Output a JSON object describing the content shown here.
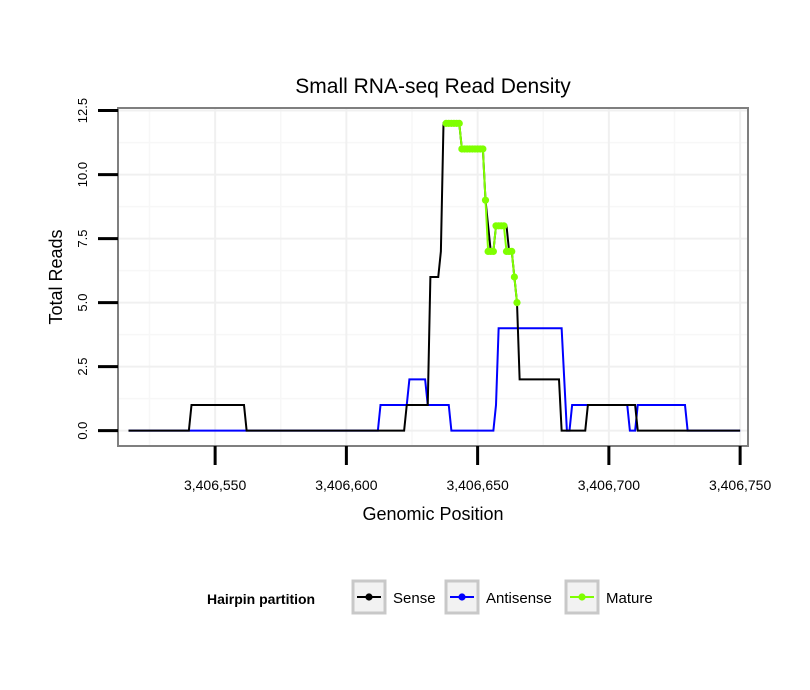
{
  "chart_data": {
    "type": "line",
    "title": "Small RNA-seq Read Density",
    "xlabel": "Genomic Position",
    "ylabel": "Total Reads",
    "xlim": [
      3406513,
      3406753
    ],
    "ylim": [
      -0.6,
      12.6
    ],
    "x_ticks": [
      3406550,
      3406600,
      3406650,
      3406700,
      3406750
    ],
    "x_tick_labels": [
      "3,406,550",
      "3,406,600",
      "3,406,650",
      "3,406,700",
      "3,406,750"
    ],
    "y_ticks": [
      0,
      2.5,
      5,
      7.5,
      10,
      12.5
    ],
    "y_tick_labels": [
      "0.0",
      "2.5",
      "5.0",
      "7.5",
      "10.0",
      "12.5"
    ],
    "grid": true,
    "legend": {
      "title": "Hairpin partition",
      "position": "bottom",
      "entries": [
        "Sense",
        "Antisense",
        "Mature"
      ]
    },
    "series": [
      {
        "name": "Sense",
        "color": "#000000",
        "x": [
          3406517,
          3406540,
          3406541,
          3406561,
          3406562,
          3406622,
          3406623,
          3406631,
          3406632,
          3406635,
          3406636,
          3406637,
          3406638,
          3406643,
          3406644,
          3406652,
          3406653,
          3406655,
          3406656,
          3406657,
          3406658,
          3406661,
          3406662,
          3406663,
          3406664,
          3406665,
          3406666,
          3406681,
          3406682,
          3406686,
          3406687,
          3406691,
          3406692,
          3406710,
          3406711,
          3406750
        ],
        "y": [
          0,
          0,
          1,
          1,
          0,
          0,
          1,
          1,
          6,
          6,
          7,
          12,
          12,
          12,
          11,
          11,
          9,
          7,
          7,
          8,
          8,
          8,
          7,
          7,
          6,
          5,
          2,
          2,
          0,
          0,
          0,
          0,
          1,
          1,
          0,
          0
        ]
      },
      {
        "name": "Antisense",
        "color": "#0000ff",
        "x": [
          3406517,
          3406612,
          3406613,
          3406623,
          3406624,
          3406630,
          3406631,
          3406639,
          3406640,
          3406655,
          3406656,
          3406657,
          3406658,
          3406682,
          3406683,
          3406684,
          3406685,
          3406686,
          3406687,
          3406707,
          3406708,
          3406710,
          3406711,
          3406729,
          3406730,
          3406750
        ],
        "y": [
          0,
          0,
          1,
          1,
          2,
          2,
          1,
          1,
          0,
          0,
          0,
          1,
          4,
          4,
          2,
          0,
          0,
          1,
          1,
          1,
          0,
          0,
          1,
          1,
          0,
          0
        ]
      },
      {
        "name": "Mature",
        "color": "#7fff00",
        "x": [
          3406638,
          3406639,
          3406640,
          3406641,
          3406642,
          3406643,
          3406644,
          3406645,
          3406646,
          3406647,
          3406648,
          3406649,
          3406650,
          3406651,
          3406652,
          3406653,
          3406654,
          3406655,
          3406656,
          3406657,
          3406658,
          3406659,
          3406660,
          3406661,
          3406662,
          3406663,
          3406664,
          3406665
        ],
        "y": [
          12,
          12,
          12,
          12,
          12,
          12,
          11,
          11,
          11,
          11,
          11,
          11,
          11,
          11,
          11,
          9,
          7,
          7,
          7,
          8,
          8,
          8,
          8,
          7,
          7,
          7,
          6,
          5
        ]
      }
    ]
  }
}
